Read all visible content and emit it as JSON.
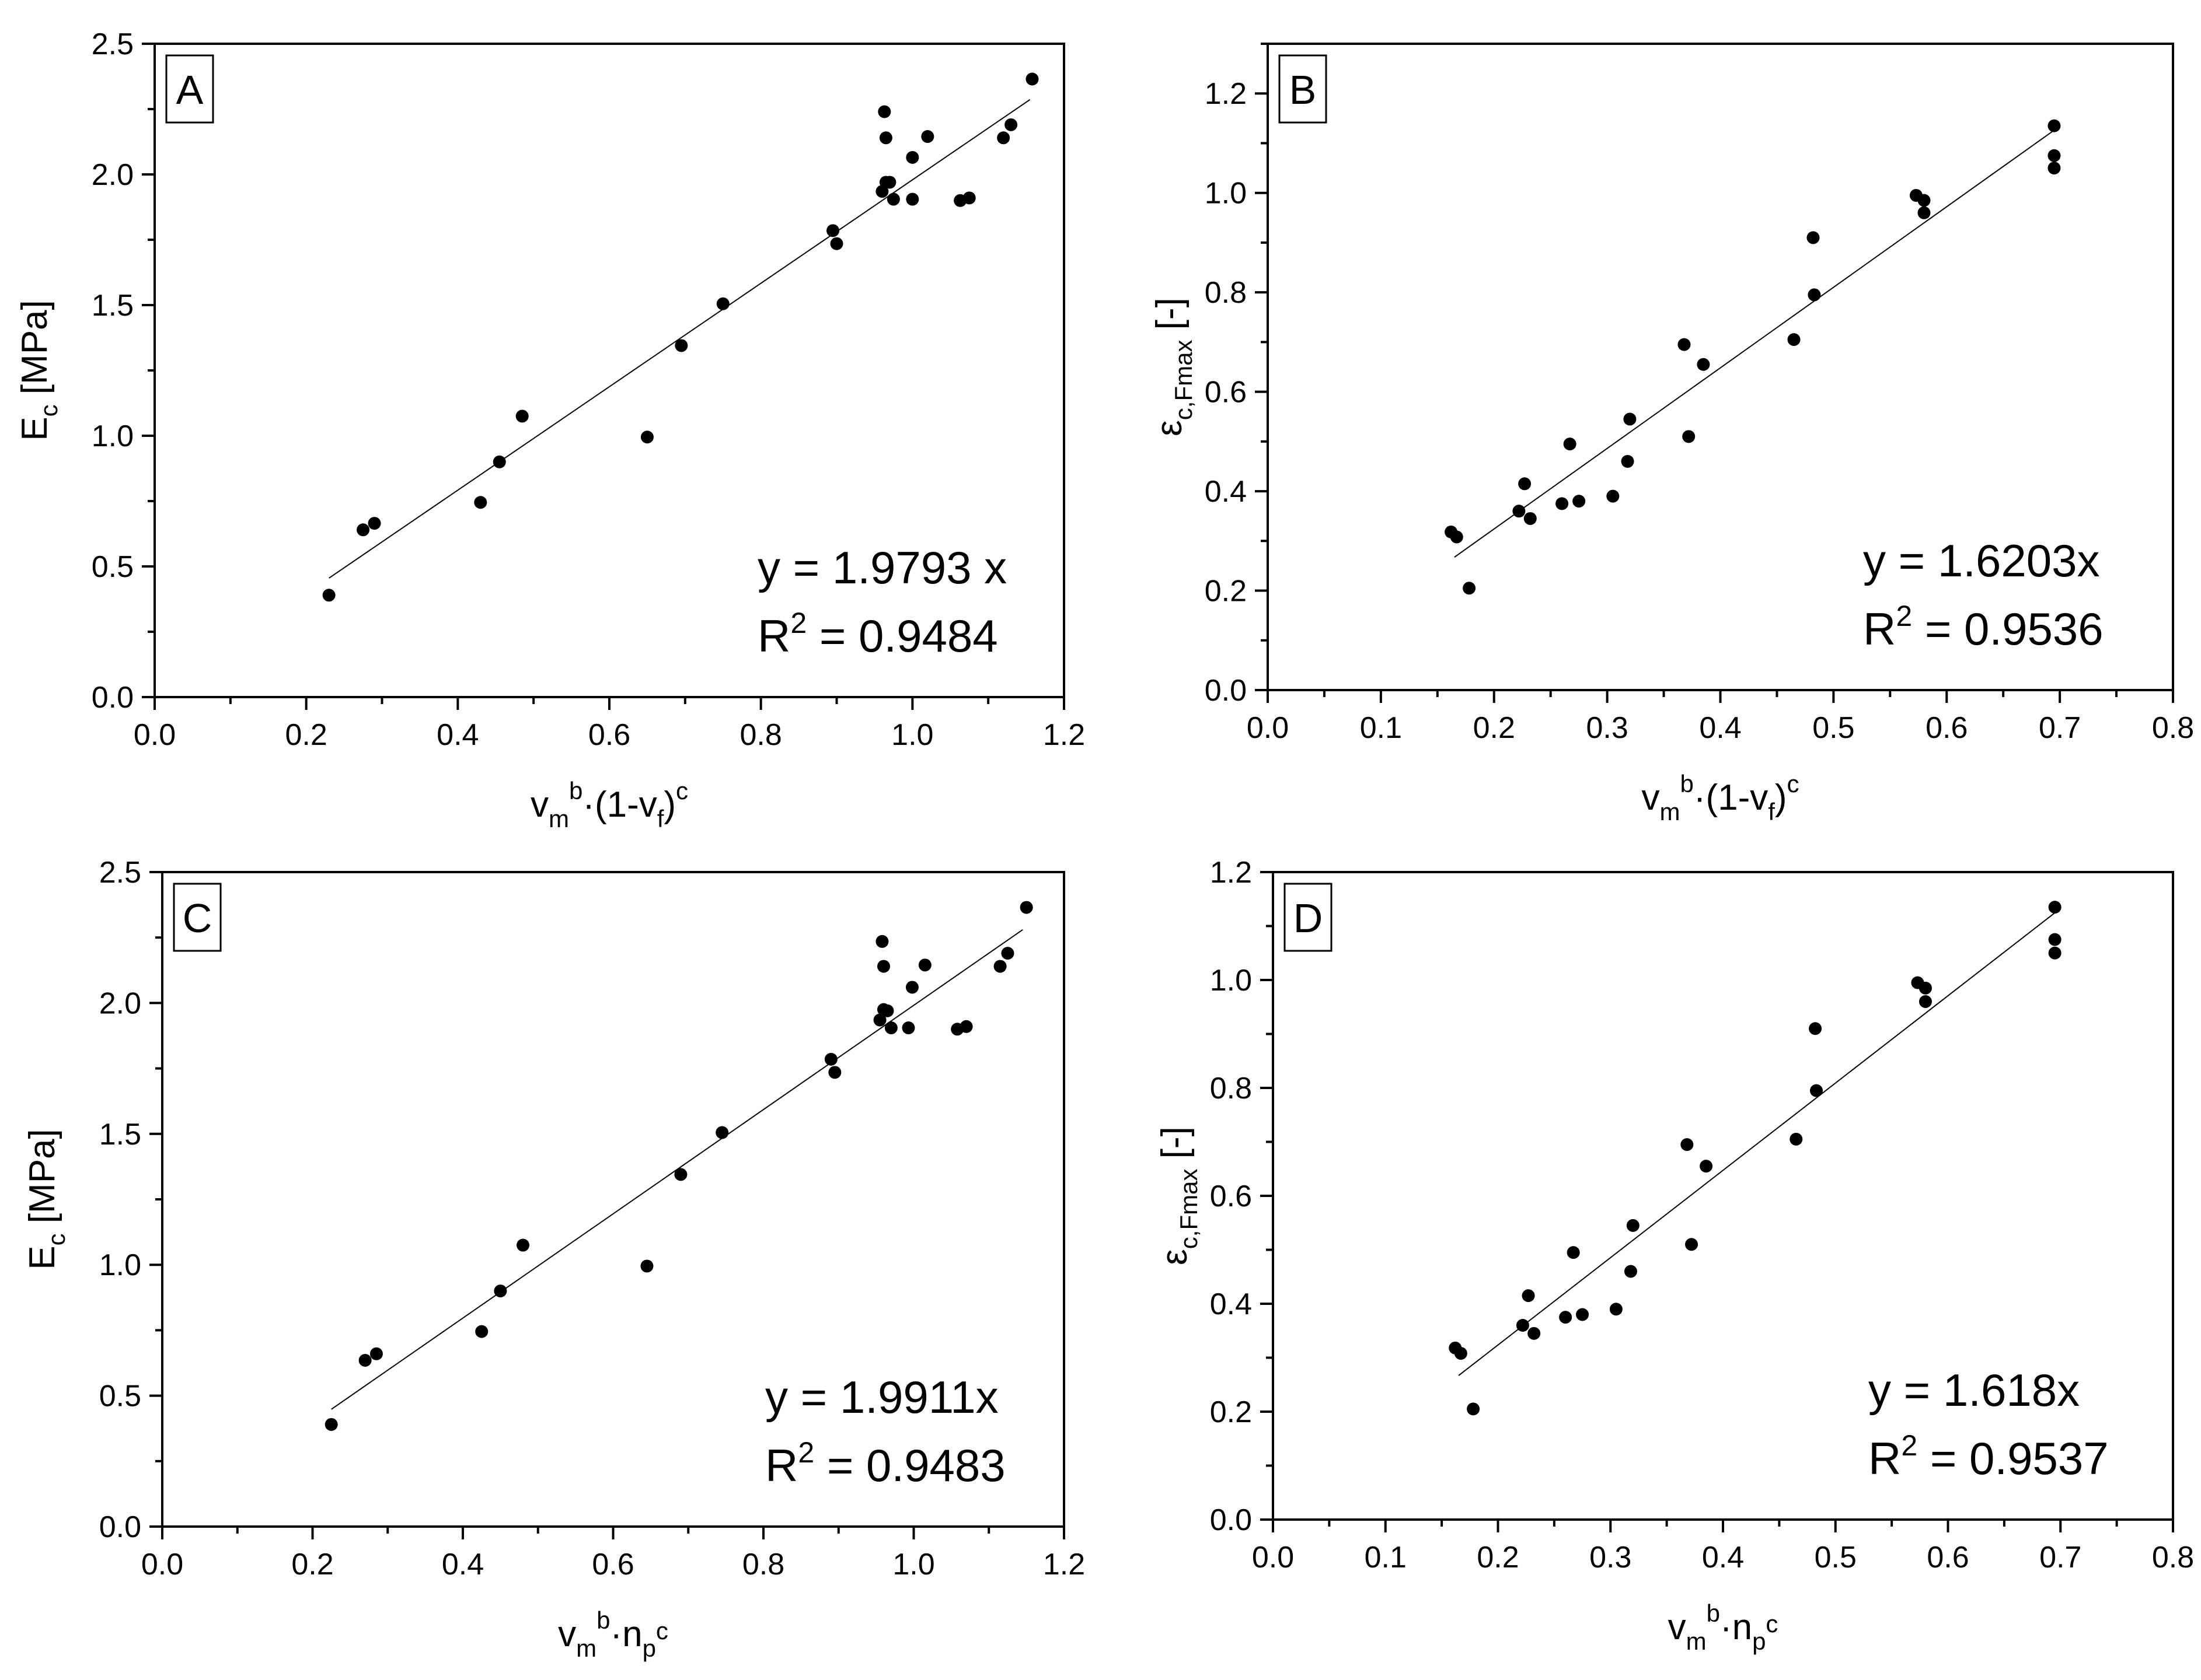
{
  "colors": {
    "background": "#ffffff",
    "ink": "#000000"
  },
  "chart_data": [
    {
      "type": "scatter",
      "panel_label": "A",
      "xlabel": {
        "base": "v",
        "sub1": "m",
        "sup1": "b",
        "mid": "·(1-v",
        "sub2": "f",
        "tail": ")",
        "sup2": "c"
      },
      "ylabel": {
        "base": "E",
        "sub": "c",
        "tail": " [MPa]"
      },
      "xlim": [
        0,
        1.2
      ],
      "ylim": [
        0,
        2.5
      ],
      "xticks": [
        0.0,
        0.2,
        0.4,
        0.6,
        0.8,
        1.0,
        1.2
      ],
      "yticks": [
        0.0,
        0.5,
        1.0,
        1.5,
        2.0,
        2.5
      ],
      "xtick_labels": [
        "0.0",
        "0.2",
        "0.4",
        "0.6",
        "0.8",
        "1.0",
        "1.2"
      ],
      "ytick_labels": [
        "0.0",
        "0.5",
        "1.0",
        "1.5",
        "2.0",
        "2.5"
      ],
      "fit": {
        "slope": 1.9793,
        "x_range": [
          0.23,
          1.155
        ]
      },
      "equation": "y = 1.9793 x",
      "r2": {
        "label": "R",
        "sup": "2",
        "value": " = 0.9484"
      },
      "x": [
        0.23,
        0.275,
        0.29,
        0.43,
        0.455,
        0.485,
        0.65,
        0.695,
        0.75,
        0.895,
        0.9,
        0.96,
        0.963,
        0.965,
        0.965,
        0.97,
        0.975,
        1.0,
        1.0,
        1.02,
        1.063,
        1.075,
        1.12,
        1.13,
        1.158
      ],
      "y": [
        0.39,
        0.64,
        0.665,
        0.745,
        0.9,
        1.075,
        0.995,
        1.345,
        1.505,
        1.785,
        1.735,
        1.935,
        2.24,
        2.14,
        1.97,
        1.97,
        1.905,
        1.905,
        2.065,
        2.145,
        1.9,
        1.91,
        2.14,
        2.19,
        2.365
      ]
    },
    {
      "type": "scatter",
      "panel_label": "B",
      "xlabel": {
        "base": "v",
        "sub1": "m",
        "sup1": "b",
        "mid": "·(1-v",
        "sub2": "f",
        "tail": ")",
        "sup2": "c"
      },
      "ylabel": {
        "base": "ε",
        "sub": "c,Fmax",
        "tail": " [-]"
      },
      "xlim": [
        0,
        0.8
      ],
      "ylim": [
        0,
        1.3
      ],
      "xticks": [
        0.0,
        0.1,
        0.2,
        0.3,
        0.4,
        0.5,
        0.6,
        0.7,
        0.8
      ],
      "yticks": [
        0.0,
        0.2,
        0.4,
        0.6,
        0.8,
        1.0,
        1.2
      ],
      "xtick_labels": [
        "0.0",
        "0.1",
        "0.2",
        "0.3",
        "0.4",
        "0.5",
        "0.6",
        "0.7",
        "0.8"
      ],
      "ytick_labels": [
        "0.0",
        "0.2",
        "0.4",
        "0.6",
        "0.8",
        "1.0",
        "1.2"
      ],
      "fit": {
        "slope": 1.6203,
        "x_range": [
          0.165,
          0.695
        ]
      },
      "equation": "y = 1.6203x",
      "r2": {
        "label": "R",
        "sup": "2",
        "value": " = 0.9536"
      },
      "x": [
        0.162,
        0.167,
        0.178,
        0.222,
        0.227,
        0.232,
        0.26,
        0.267,
        0.275,
        0.305,
        0.318,
        0.32,
        0.368,
        0.372,
        0.385,
        0.465,
        0.482,
        0.483,
        0.573,
        0.58,
        0.58,
        0.695,
        0.695,
        0.695
      ],
      "y": [
        0.318,
        0.308,
        0.205,
        0.36,
        0.415,
        0.345,
        0.375,
        0.495,
        0.38,
        0.39,
        0.46,
        0.545,
        0.695,
        0.51,
        0.655,
        0.705,
        0.91,
        0.795,
        0.995,
        0.985,
        0.96,
        1.135,
        1.075,
        1.05
      ]
    },
    {
      "type": "scatter",
      "panel_label": "C",
      "xlabel": {
        "base": "v",
        "sub1": "m",
        "sup1": "b",
        "mid": "·n",
        "sub2": "p",
        "tail": "",
        "sup2": "c"
      },
      "ylabel": {
        "base": "E",
        "sub": "c",
        "tail": " [MPa]"
      },
      "xlim": [
        0,
        1.2
      ],
      "ylim": [
        0,
        2.5
      ],
      "xticks": [
        0.0,
        0.2,
        0.4,
        0.6,
        0.8,
        1.0,
        1.2
      ],
      "yticks": [
        0.0,
        0.5,
        1.0,
        1.5,
        2.0,
        2.5
      ],
      "xtick_labels": [
        "0.0",
        "0.2",
        "0.4",
        "0.6",
        "0.8",
        "1.0",
        "1.2"
      ],
      "ytick_labels": [
        "0.0",
        "0.5",
        "1.0",
        "1.5",
        "2.0",
        "2.5"
      ],
      "fit": {
        "slope": 1.9911,
        "x_range": [
          0.225,
          1.145
        ]
      },
      "equation": "y = 1.9911x",
      "r2": {
        "label": "R",
        "sup": "2",
        "value": " = 0.9483"
      },
      "x": [
        0.225,
        0.27,
        0.285,
        0.425,
        0.45,
        0.48,
        0.645,
        0.69,
        0.745,
        0.89,
        0.895,
        0.955,
        0.958,
        0.96,
        0.96,
        0.965,
        0.97,
        0.993,
        0.998,
        1.015,
        1.058,
        1.07,
        1.115,
        1.125,
        1.15
      ],
      "y": [
        0.39,
        0.635,
        0.66,
        0.745,
        0.9,
        1.075,
        0.995,
        1.345,
        1.505,
        1.785,
        1.735,
        1.935,
        2.235,
        2.14,
        1.975,
        1.97,
        1.905,
        1.905,
        2.06,
        2.145,
        1.9,
        1.91,
        2.14,
        2.19,
        2.365
      ]
    },
    {
      "type": "scatter",
      "panel_label": "D",
      "xlabel": {
        "base": "v",
        "sub1": "m",
        "sup1": "b",
        "mid": "·n",
        "sub2": "p",
        "tail": "",
        "sup2": "c"
      },
      "ylabel": {
        "base": "ε",
        "sub": "c,Fmax",
        "tail": " [-]"
      },
      "xlim": [
        0,
        0.8
      ],
      "ylim": [
        0,
        1.2
      ],
      "xticks": [
        0.0,
        0.1,
        0.2,
        0.3,
        0.4,
        0.5,
        0.6,
        0.7,
        0.8
      ],
      "yticks": [
        0.0,
        0.2,
        0.4,
        0.6,
        0.8,
        1.0,
        1.2
      ],
      "xtick_labels": [
        "0.0",
        "0.1",
        "0.2",
        "0.3",
        "0.4",
        "0.5",
        "0.6",
        "0.7",
        "0.8"
      ],
      "ytick_labels": [
        "0.0",
        "0.2",
        "0.4",
        "0.6",
        "0.8",
        "1.0",
        "1.2"
      ],
      "fit": {
        "slope": 1.618,
        "x_range": [
          0.165,
          0.695
        ]
      },
      "equation": "y = 1.618x",
      "r2": {
        "label": "R",
        "sup": "2",
        "value": " = 0.9537"
      },
      "x": [
        0.162,
        0.167,
        0.178,
        0.222,
        0.227,
        0.232,
        0.26,
        0.267,
        0.275,
        0.305,
        0.318,
        0.32,
        0.368,
        0.372,
        0.385,
        0.465,
        0.482,
        0.483,
        0.573,
        0.58,
        0.58,
        0.695,
        0.695,
        0.695
      ],
      "y": [
        0.318,
        0.308,
        0.205,
        0.36,
        0.415,
        0.345,
        0.375,
        0.495,
        0.38,
        0.39,
        0.46,
        0.545,
        0.695,
        0.51,
        0.655,
        0.705,
        0.91,
        0.795,
        0.995,
        0.985,
        0.96,
        1.135,
        1.075,
        1.05
      ]
    }
  ]
}
